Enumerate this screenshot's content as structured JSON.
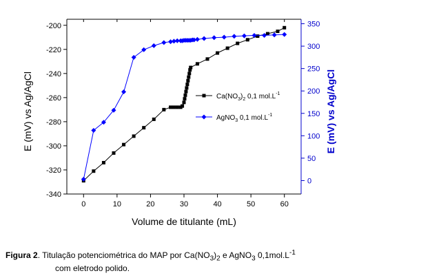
{
  "chart_data": {
    "type": "line",
    "xlabel": "Volume de titulante (mL)",
    "ylabel": "E (mV) vs Ag/AgCl",
    "y2label": "E (mV) vs Ag/AgCl",
    "xlim": [
      -5,
      65
    ],
    "ylim": [
      -340,
      -195
    ],
    "y2lim": [
      -30,
      360
    ],
    "xticks": [
      0,
      10,
      20,
      30,
      40,
      50,
      60
    ],
    "yticks": [
      -200,
      -220,
      -240,
      -260,
      -280,
      -300,
      -320,
      -340
    ],
    "y2ticks": [
      0,
      50,
      100,
      150,
      200,
      250,
      300,
      350
    ],
    "grid": false,
    "legend_position": "center-right",
    "series": [
      {
        "name": "Ca(NO3)2 0,1 mol.L-1",
        "axis": "left",
        "color": "#000000",
        "marker": "square",
        "x": [
          0,
          3,
          6,
          9,
          12,
          15,
          18,
          21,
          24,
          26,
          27,
          28,
          29,
          29.5,
          30,
          30.2,
          30.4,
          30.6,
          30.8,
          31,
          31.2,
          31.4,
          31.6,
          31.8,
          32,
          34,
          37,
          40,
          43,
          46,
          49,
          52,
          55,
          58,
          60
        ],
        "y": [
          -329,
          -321,
          -314,
          -306,
          -299,
          -292,
          -285,
          -278,
          -270,
          -268,
          -268,
          -268,
          -268,
          -267,
          -264,
          -261,
          -258,
          -255,
          -252,
          -249,
          -246,
          -243,
          -240,
          -237,
          -235,
          -232,
          -228,
          -223,
          -219,
          -215,
          -212,
          -209,
          -207,
          -205,
          -202
        ]
      },
      {
        "name": "AgNO3 0,1 mol.L-1",
        "axis": "right",
        "color": "#0000ff",
        "marker": "diamond",
        "x": [
          0,
          3,
          6,
          9,
          12,
          15,
          18,
          21,
          24,
          26,
          27,
          28,
          29,
          29.5,
          30,
          30.5,
          31,
          31.5,
          32,
          32.5,
          33,
          34,
          36,
          39,
          42,
          45,
          48,
          51,
          54,
          57,
          60
        ],
        "y": [
          3,
          112,
          130,
          157,
          198,
          275,
          292,
          301,
          308,
          310,
          311,
          312,
          312,
          312,
          313,
          313,
          313,
          313,
          313,
          314,
          314,
          315,
          317,
          319,
          320,
          322,
          323,
          324,
          324,
          325,
          326
        ]
      }
    ]
  },
  "legend": {
    "ca_main": "Ca(NO",
    "ca_sub1": "3",
    "ca_mid": ")",
    "ca_sub2": "2",
    "ca_rest": " 0,1 mol.L",
    "ca_sup": "-1",
    "ag_main": "AgNO",
    "ag_sub": "3",
    "ag_rest": " 0,1 mol.L",
    "ag_sup": "-1"
  },
  "caption": {
    "label": "Figura 2",
    "text1": ". Titulação potenciométrica do MAP por Ca(NO",
    "sub1": "3",
    "text2": ")",
    "sub2": "2",
    "text3": " e AgNO",
    "sub3": "3",
    "text4": " 0,1mol.L",
    "sup1": "-1",
    "line2": "com eletrodo polido."
  }
}
